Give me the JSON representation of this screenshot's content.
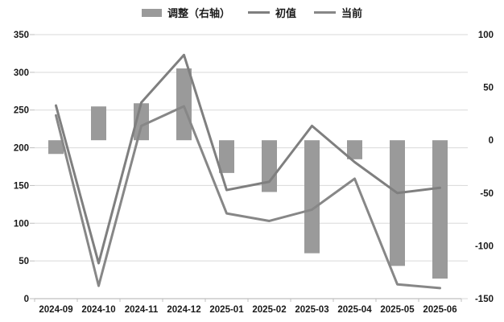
{
  "legend": {
    "bar_label": "调整（右轴）",
    "line1_label": "初值",
    "line2_label": "当前"
  },
  "colors": {
    "bar": "#9a9a9a",
    "line_initial": "#7f7f7f",
    "line_current": "#878787",
    "gridline": "#d9d9d9",
    "axis": "#bfbfbf",
    "text": "#1a1a1a"
  },
  "chart_data": {
    "type": "combo",
    "title": "",
    "legend_position": "top",
    "grid": true,
    "categories": [
      "2024-09",
      "2024-10",
      "2024-11",
      "2024-12",
      "2025-01",
      "2025-02",
      "2025-03",
      "2025-04",
      "2025-05",
      "2025-06"
    ],
    "series": [
      {
        "name": "调整（右轴）",
        "type": "bar",
        "axis": "right",
        "values": [
          -13,
          32,
          35,
          68,
          -31,
          -49,
          -107,
          -18,
          -119,
          -131
        ]
      },
      {
        "name": "初值",
        "type": "line",
        "axis": "left",
        "values": [
          256,
          47,
          260,
          323,
          144,
          155,
          229,
          181,
          140,
          147
        ]
      },
      {
        "name": "当前",
        "type": "line",
        "axis": "left",
        "values": [
          243,
          17,
          229,
          255,
          113,
          103,
          118,
          159,
          19,
          14
        ]
      }
    ],
    "left_axis": {
      "min": 0,
      "max": 350,
      "tick_labels": [
        "0",
        "50",
        "100",
        "150",
        "200",
        "250",
        "300",
        "350"
      ]
    },
    "right_axis": {
      "min": -150,
      "max": 100,
      "tick_labels": [
        "-150",
        "-100",
        "-50",
        "0",
        "50",
        "100"
      ]
    }
  }
}
